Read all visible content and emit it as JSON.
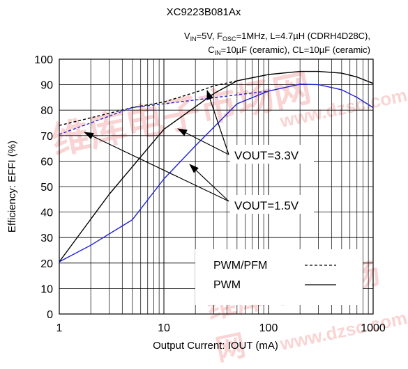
{
  "watermark": {
    "text_cn": "维库电子市场网",
    "text_url": "www.dzsc.com"
  },
  "chart_data": {
    "type": "line",
    "title": "XC9223B081Ax",
    "conditions": {
      "line1": {
        "v": "V",
        "v_sub": "IN",
        "p1": "=5V, F",
        "f_sub": "OSC",
        "p2": "=1MHz, L=4.7µH (CDRH4D28C),"
      },
      "line2": {
        "c": "C",
        "c_sub": "IN",
        "p1": "=10µF (ceramic), CL=10µF (ceramic)"
      }
    },
    "xlabel": "Output Current: IOUT (mA)",
    "ylabel": "Efficiency: EFFI (%)",
    "xscale": "log",
    "xlim": [
      1,
      1000
    ],
    "ylim": [
      0,
      100
    ],
    "xticks": [
      {
        "value": 1,
        "label": "1"
      },
      {
        "value": 10,
        "label": "10"
      },
      {
        "value": 100,
        "label": "100"
      },
      {
        "value": 1000,
        "label": "1000"
      }
    ],
    "yticks": [
      0,
      10,
      20,
      30,
      40,
      50,
      60,
      70,
      80,
      90,
      100
    ],
    "grid": true,
    "legend": {
      "placement": "bottom-right",
      "entries": [
        {
          "label": "PWM/PFM",
          "style": "dashed"
        },
        {
          "label": "PWM",
          "style": "solid"
        }
      ]
    },
    "annotations": [
      {
        "label": "VOUT=3.3V",
        "points_to": [
          "vout33-pwm",
          "vout33-pfm"
        ]
      },
      {
        "label": "VOUT=1.5V",
        "points_to": [
          "vout15-pwm",
          "vout15-pfm"
        ]
      }
    ],
    "series": [
      {
        "id": "vout33-pwm",
        "mode": "PWM",
        "color": "#000000",
        "dash": false,
        "x": [
          1,
          3,
          10,
          30,
          50,
          100,
          200,
          300,
          500,
          700,
          1000
        ],
        "y": [
          20.5,
          47,
          72.5,
          86.5,
          91.5,
          94,
          95.2,
          95.2,
          94.5,
          93,
          90.5
        ]
      },
      {
        "id": "vout33-pfm",
        "mode": "PWM/PFM",
        "color": "#000000",
        "dash": true,
        "x": [
          1,
          2,
          5,
          10,
          20,
          30,
          50
        ],
        "y": [
          74,
          77,
          81,
          83.2,
          87,
          89.5,
          91.5
        ]
      },
      {
        "id": "vout15-pwm",
        "mode": "PWM",
        "color": "#1f1fd6",
        "dash": false,
        "x": [
          1,
          2,
          5,
          10,
          20,
          50,
          100,
          200,
          300,
          500,
          700,
          1000
        ],
        "y": [
          20.5,
          27,
          37,
          53,
          66,
          82.5,
          87.5,
          90.2,
          90,
          88,
          85,
          81
        ]
      },
      {
        "id": "vout15-pfm",
        "mode": "PWM/PFM",
        "color": "#1f1fd6",
        "dash": true,
        "x": [
          1,
          2,
          5,
          10,
          20,
          50,
          100
        ],
        "y": [
          70.5,
          75,
          81,
          82.5,
          84,
          86,
          87.5
        ]
      }
    ]
  }
}
